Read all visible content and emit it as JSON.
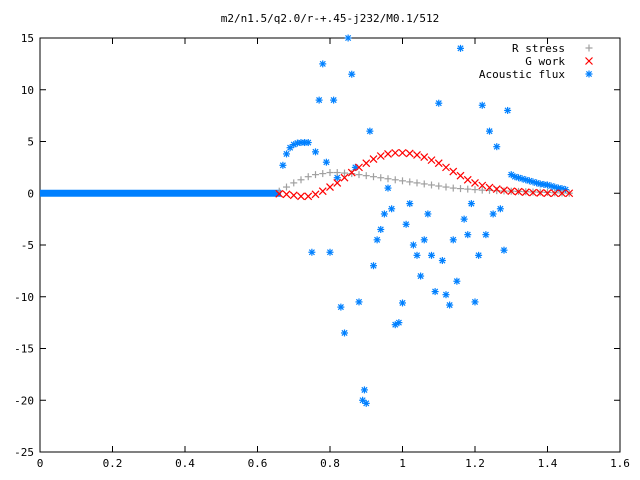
{
  "chart_data": {
    "type": "scatter",
    "title": "m2/n1.5/q2.0/r-+.45-j232/M0.1/512",
    "xlabel": "",
    "ylabel": "",
    "xlim": [
      0,
      1.6
    ],
    "ylim": [
      -25,
      15
    ],
    "xticks": [
      "0",
      "0.2",
      "0.4",
      "0.6",
      "0.8",
      "1",
      "1.2",
      "1.4",
      "1.6"
    ],
    "yticks": [
      "15",
      "10",
      "5",
      "0",
      "-5",
      "-10",
      "-15",
      "-20",
      "-25"
    ],
    "grid": false,
    "legend_position": "top-right",
    "series": [
      {
        "name": "R stress",
        "marker": "plus",
        "color": "#a0a0a0",
        "points": [
          [
            0.66,
            0.2
          ],
          [
            0.68,
            0.6
          ],
          [
            0.7,
            1.0
          ],
          [
            0.72,
            1.3
          ],
          [
            0.74,
            1.6
          ],
          [
            0.76,
            1.8
          ],
          [
            0.78,
            1.9
          ],
          [
            0.8,
            2.0
          ],
          [
            0.82,
            2.0
          ],
          [
            0.84,
            1.95
          ],
          [
            0.86,
            1.9
          ],
          [
            0.88,
            1.8
          ],
          [
            0.9,
            1.7
          ],
          [
            0.92,
            1.6
          ],
          [
            0.94,
            1.5
          ],
          [
            0.96,
            1.4
          ],
          [
            0.98,
            1.3
          ],
          [
            1.0,
            1.2
          ],
          [
            1.02,
            1.1
          ],
          [
            1.04,
            1.0
          ],
          [
            1.06,
            0.9
          ],
          [
            1.08,
            0.8
          ],
          [
            1.1,
            0.7
          ],
          [
            1.12,
            0.6
          ],
          [
            1.14,
            0.5
          ],
          [
            1.16,
            0.45
          ],
          [
            1.18,
            0.4
          ],
          [
            1.2,
            0.35
          ],
          [
            1.22,
            0.3
          ],
          [
            1.24,
            0.28
          ],
          [
            1.26,
            0.25
          ],
          [
            1.28,
            0.22
          ],
          [
            1.3,
            0.2
          ],
          [
            1.32,
            0.18
          ],
          [
            1.34,
            0.15
          ],
          [
            1.36,
            0.12
          ],
          [
            1.38,
            0.1
          ],
          [
            1.4,
            0.08
          ],
          [
            1.42,
            0.05
          ],
          [
            1.44,
            0.03
          ],
          [
            1.46,
            0.0
          ]
        ]
      },
      {
        "name": "G work",
        "marker": "cross",
        "color": "#ff0000",
        "points": [
          [
            0.66,
            -0.05
          ],
          [
            0.68,
            -0.1
          ],
          [
            0.7,
            -0.2
          ],
          [
            0.72,
            -0.3
          ],
          [
            0.74,
            -0.3
          ],
          [
            0.76,
            -0.1
          ],
          [
            0.78,
            0.2
          ],
          [
            0.8,
            0.6
          ],
          [
            0.82,
            1.0
          ],
          [
            0.84,
            1.5
          ],
          [
            0.86,
            2.0
          ],
          [
            0.88,
            2.5
          ],
          [
            0.9,
            2.9
          ],
          [
            0.92,
            3.3
          ],
          [
            0.94,
            3.6
          ],
          [
            0.96,
            3.8
          ],
          [
            0.98,
            3.9
          ],
          [
            1.0,
            3.9
          ],
          [
            1.02,
            3.85
          ],
          [
            1.04,
            3.7
          ],
          [
            1.06,
            3.5
          ],
          [
            1.08,
            3.2
          ],
          [
            1.1,
            2.9
          ],
          [
            1.12,
            2.5
          ],
          [
            1.14,
            2.1
          ],
          [
            1.16,
            1.7
          ],
          [
            1.18,
            1.3
          ],
          [
            1.2,
            1.0
          ],
          [
            1.22,
            0.75
          ],
          [
            1.24,
            0.55
          ],
          [
            1.26,
            0.4
          ],
          [
            1.28,
            0.3
          ],
          [
            1.3,
            0.2
          ],
          [
            1.32,
            0.15
          ],
          [
            1.34,
            0.1
          ],
          [
            1.36,
            0.06
          ],
          [
            1.38,
            0.03
          ],
          [
            1.4,
            0.01
          ],
          [
            1.42,
            0.0
          ],
          [
            1.44,
            0.0
          ],
          [
            1.46,
            0.0
          ]
        ]
      },
      {
        "name": "Acoustic flux",
        "marker": "star",
        "color": "#0080ff",
        "points": [
          [
            0.67,
            2.7
          ],
          [
            0.68,
            3.8
          ],
          [
            0.69,
            4.4
          ],
          [
            0.7,
            4.7
          ],
          [
            0.71,
            4.85
          ],
          [
            0.72,
            4.9
          ],
          [
            0.73,
            4.9
          ],
          [
            0.74,
            4.9
          ],
          [
            0.75,
            -5.7
          ],
          [
            0.76,
            4.0
          ],
          [
            0.77,
            9.0
          ],
          [
            0.78,
            12.5
          ],
          [
            0.79,
            3.0
          ],
          [
            0.8,
            -5.7
          ],
          [
            0.81,
            9.0
          ],
          [
            0.82,
            1.5
          ],
          [
            0.83,
            -11.0
          ],
          [
            0.84,
            -13.5
          ],
          [
            0.85,
            15.0
          ],
          [
            0.86,
            11.5
          ],
          [
            0.87,
            2.5
          ],
          [
            0.88,
            -10.5
          ],
          [
            0.89,
            -20.0
          ],
          [
            0.895,
            -19.0
          ],
          [
            0.9,
            -20.3
          ],
          [
            0.91,
            6.0
          ],
          [
            0.92,
            -7.0
          ],
          [
            0.93,
            -4.5
          ],
          [
            0.94,
            -3.5
          ],
          [
            0.95,
            -2.0
          ],
          [
            0.96,
            0.5
          ],
          [
            0.97,
            -1.5
          ],
          [
            0.98,
            -12.7
          ],
          [
            0.99,
            -12.5
          ],
          [
            1.0,
            -10.6
          ],
          [
            1.01,
            -3.0
          ],
          [
            1.02,
            -1.0
          ],
          [
            1.03,
            -5.0
          ],
          [
            1.04,
            -6.0
          ],
          [
            1.05,
            -8.0
          ],
          [
            1.06,
            -4.5
          ],
          [
            1.07,
            -2.0
          ],
          [
            1.08,
            -6.0
          ],
          [
            1.09,
            -9.5
          ],
          [
            1.1,
            8.7
          ],
          [
            1.11,
            -6.5
          ],
          [
            1.12,
            -9.8
          ],
          [
            1.13,
            -10.8
          ],
          [
            1.14,
            -4.5
          ],
          [
            1.15,
            -8.5
          ],
          [
            1.16,
            14.0
          ],
          [
            1.17,
            -2.5
          ],
          [
            1.18,
            -4.0
          ],
          [
            1.19,
            -1.0
          ],
          [
            1.2,
            -10.5
          ],
          [
            1.21,
            -6.0
          ],
          [
            1.22,
            8.5
          ],
          [
            1.23,
            -4.0
          ],
          [
            1.24,
            6.0
          ],
          [
            1.25,
            -2.0
          ],
          [
            1.26,
            4.5
          ],
          [
            1.27,
            -1.5
          ],
          [
            1.28,
            -5.5
          ],
          [
            1.29,
            8.0
          ],
          [
            1.3,
            1.8
          ],
          [
            1.31,
            1.6
          ],
          [
            1.32,
            1.5
          ],
          [
            1.33,
            1.4
          ],
          [
            1.34,
            1.3
          ],
          [
            1.35,
            1.2
          ],
          [
            1.36,
            1.1
          ],
          [
            1.37,
            1.0
          ],
          [
            1.38,
            0.9
          ],
          [
            1.39,
            0.85
          ],
          [
            1.4,
            0.8
          ],
          [
            1.41,
            0.7
          ],
          [
            1.42,
            0.6
          ],
          [
            1.43,
            0.5
          ],
          [
            1.44,
            0.45
          ],
          [
            1.45,
            0.35
          ]
        ]
      }
    ]
  }
}
